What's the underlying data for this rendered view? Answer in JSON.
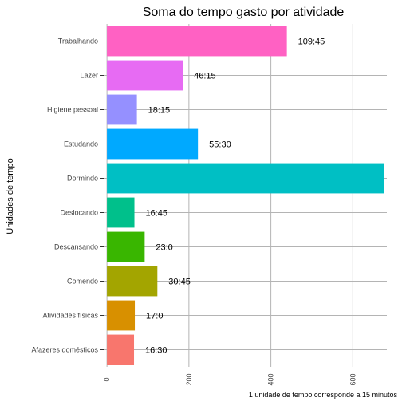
{
  "chart_data": {
    "type": "bar",
    "orientation": "horizontal",
    "title": "Soma do tempo gasto por atividade",
    "ylabel": "Unidades de tempo",
    "caption": "1 unidade de tempo corresponde a 15 minutos",
    "categories": [
      "Trabalhando",
      "Lazer",
      "Higiene pessoal",
      "Estudando",
      "Dormindo",
      "Deslocando",
      "Descansando",
      "Comendo",
      "Atividades físicas",
      "Afazeres domésticos"
    ],
    "values": [
      439,
      185,
      73,
      222,
      676,
      67,
      92,
      123,
      68,
      66
    ],
    "data_labels": [
      "109:45",
      "46:15",
      "18:15",
      "55:30",
      "",
      "16:45",
      "23:0",
      "30:45",
      "17:0",
      "16:30"
    ],
    "colors": [
      "#FF61C3",
      "#E76BF3",
      "#9590FF",
      "#00A9FF",
      "#00BFC4",
      "#00C08B",
      "#39B600",
      "#A3A500",
      "#D89000",
      "#F8766D"
    ],
    "xlim": [
      -8,
      683
    ],
    "x_ticks": [
      "0",
      "200",
      "400",
      "600"
    ],
    "x_tick_values": [
      0,
      200,
      400,
      600
    ],
    "grid": true,
    "legend": "none"
  }
}
